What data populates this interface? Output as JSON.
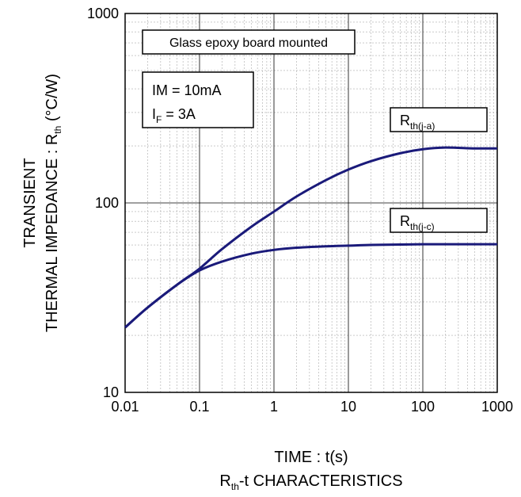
{
  "chart_data": {
    "type": "line",
    "title": "Rth-t CHARACTERISTICS",
    "title_parts": {
      "main": "R",
      "sub": "th",
      "rest": "-t CHARACTERISTICS"
    },
    "xlabel": "TIME : t(s)",
    "ylabel_line1": "TRANSIENT",
    "ylabel_line2": {
      "main": "THERMAL IMPEDANCE : R",
      "sub": "th",
      "rest": " (°C/W)"
    },
    "x_scale": "log",
    "y_scale": "log",
    "xlim": [
      0.01,
      1000
    ],
    "ylim": [
      10,
      1000
    ],
    "x_ticks": [
      "0.01",
      "0.1",
      "1",
      "10",
      "100",
      "1000"
    ],
    "y_ticks": [
      "10",
      "100",
      "1000"
    ],
    "grid": true,
    "line_color": "#1a1a7a",
    "series": [
      {
        "name": "Rth(j-a)",
        "label_parts": {
          "main": "R",
          "sub": "th(j-a)"
        },
        "x": [
          0.01,
          0.02,
          0.05,
          0.1,
          0.2,
          0.5,
          1,
          2,
          5,
          10,
          20,
          50,
          100,
          200,
          500,
          1000
        ],
        "y": [
          22,
          28,
          37,
          45,
          57,
          75,
          90,
          108,
          132,
          150,
          166,
          183,
          192,
          196,
          194,
          194
        ]
      },
      {
        "name": "Rth(j-c)",
        "label_parts": {
          "main": "R",
          "sub": "th(j-c)"
        },
        "x": [
          0.01,
          0.02,
          0.05,
          0.1,
          0.2,
          0.5,
          1,
          2,
          5,
          10,
          20,
          50,
          100,
          200,
          500,
          1000
        ],
        "y": [
          22,
          28,
          37,
          44,
          49,
          54,
          56.5,
          58,
          59,
          59.5,
          60,
          60.3,
          60.5,
          60.5,
          60.5,
          60.5
        ]
      }
    ],
    "annotations": {
      "mount": "Glass epoxy board mounted",
      "cond_line1": "IM = 10mA",
      "cond_line2": {
        "main": "I",
        "sub": "F",
        "rest": " = 3A"
      }
    }
  }
}
